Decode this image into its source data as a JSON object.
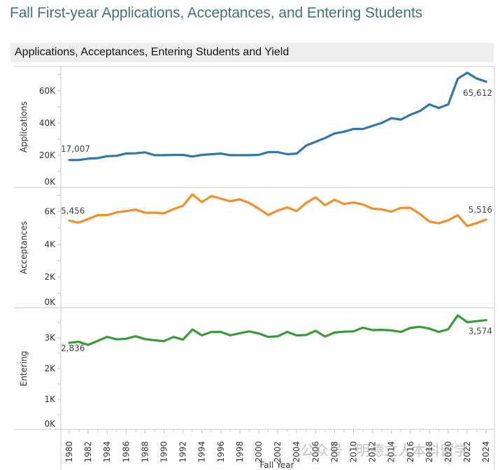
{
  "page_title": "Fall First-year Applications, Acceptances, and Entering Students",
  "section_header": "Applications, Acceptances, Entering Students and Yield",
  "watermark": "公众号 · 明德立人本科留学",
  "chart_data": {
    "type": "line",
    "title": "Applications, Acceptances, Entering Students and Yield",
    "xlabel": "Fall Year",
    "x": [
      1980,
      1981,
      1982,
      1983,
      1984,
      1985,
      1986,
      1987,
      1988,
      1989,
      1990,
      1991,
      1992,
      1993,
      1994,
      1995,
      1996,
      1997,
      1998,
      1999,
      2000,
      2001,
      2002,
      2003,
      2004,
      2005,
      2006,
      2007,
      2008,
      2009,
      2010,
      2011,
      2012,
      2013,
      2014,
      2015,
      2016,
      2017,
      2018,
      2019,
      2020,
      2021,
      2022,
      2023,
      2024
    ],
    "x_tick_labels": [
      "1980",
      "1982",
      "1984",
      "1986",
      "1988",
      "1990",
      "1992",
      "1994",
      "1996",
      "1998",
      "2000",
      "2002",
      "2004",
      "2006",
      "2008",
      "2010",
      "2012",
      "2014",
      "2016",
      "2018",
      "2020",
      "2022",
      "2024"
    ],
    "grid": false,
    "series": [
      {
        "name": "Applications",
        "ylabel": "Applications",
        "color": "#2f78a8",
        "ylim": [
          0,
          75000
        ],
        "y_ticks": [
          0,
          20000,
          40000,
          60000
        ],
        "y_tick_labels": [
          "0K",
          "20K",
          "40K",
          "60K"
        ],
        "start_label": "17,007",
        "end_label": "65,612",
        "values": [
          17007,
          17000,
          17900,
          18200,
          19400,
          19600,
          21100,
          21200,
          21800,
          20000,
          20000,
          20200,
          20200,
          19200,
          20200,
          20600,
          21000,
          20000,
          20000,
          20000,
          20200,
          21900,
          21900,
          20600,
          21000,
          26000,
          28300,
          30700,
          33500,
          34600,
          36300,
          36300,
          38200,
          40100,
          43000,
          42100,
          45100,
          47400,
          51500,
          49300,
          51500,
          67400,
          71200,
          67600,
          65612
        ]
      },
      {
        "name": "Acceptances",
        "ylabel": "Acceptances",
        "color": "#f28e2b",
        "ylim": [
          0,
          7500
        ],
        "y_ticks": [
          0,
          2000,
          4000,
          6000
        ],
        "y_tick_labels": [
          "0K",
          "2K",
          "4K",
          "6K"
        ],
        "start_label": "5,456",
        "end_label": "5,516",
        "values": [
          5456,
          5330,
          5550,
          5790,
          5790,
          5960,
          6040,
          6130,
          5940,
          5940,
          5900,
          6160,
          6360,
          7070,
          6590,
          6960,
          6800,
          6640,
          6760,
          6540,
          6190,
          5800,
          6070,
          6260,
          6040,
          6540,
          6880,
          6400,
          6730,
          6470,
          6570,
          6440,
          6190,
          6140,
          6010,
          6230,
          6240,
          5870,
          5400,
          5290,
          5470,
          5790,
          5120,
          5300,
          5516
        ]
      },
      {
        "name": "Entering",
        "ylabel": "Entering",
        "color": "#3a9a3a",
        "ylim": [
          0,
          3900
        ],
        "y_ticks": [
          0,
          1000,
          2000,
          3000
        ],
        "y_tick_labels": [
          "0K",
          "1K",
          "2K",
          "3K"
        ],
        "start_label": "2,836",
        "end_label": "3,574",
        "values": [
          2836,
          2870,
          2770,
          2900,
          3030,
          2950,
          2970,
          3050,
          2960,
          2920,
          2890,
          3030,
          2940,
          3270,
          3080,
          3190,
          3190,
          3080,
          3150,
          3210,
          3140,
          3030,
          3050,
          3190,
          3080,
          3090,
          3230,
          3040,
          3170,
          3200,
          3210,
          3330,
          3250,
          3260,
          3240,
          3190,
          3320,
          3360,
          3300,
          3190,
          3280,
          3730,
          3510,
          3540,
          3574
        ]
      }
    ]
  }
}
